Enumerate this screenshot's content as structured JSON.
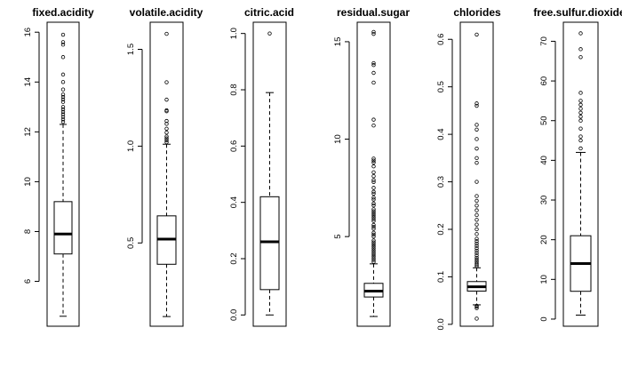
{
  "chart_data": [
    {
      "type": "boxplot",
      "title": "fixed.acidity",
      "ylim": [
        4.2,
        16.4
      ],
      "ticks": [
        6,
        8,
        10,
        12,
        14,
        16
      ],
      "tick_labels": [
        "6",
        "8",
        "10",
        "12",
        "14",
        "16"
      ],
      "box": {
        "whisker_low": 4.6,
        "q1": 7.1,
        "median": 7.9,
        "q3": 9.2,
        "whisker_high": 12.3
      },
      "outliers": [
        12.4,
        12.5,
        12.6,
        12.7,
        12.8,
        12.9,
        13.0,
        13.2,
        13.3,
        13.4,
        13.5,
        13.7,
        14.0,
        14.3,
        15.0,
        15.5,
        15.6,
        15.9
      ]
    },
    {
      "type": "boxplot",
      "title": "volatile.acidity",
      "ylim": [
        0.07,
        1.64
      ],
      "ticks": [
        0.5,
        1.0,
        1.5
      ],
      "tick_labels": [
        "0.5",
        "1.0",
        "1.5"
      ],
      "box": {
        "whisker_low": 0.12,
        "q1": 0.39,
        "median": 0.52,
        "q3": 0.64,
        "whisker_high": 1.01
      },
      "outliers": [
        1.02,
        1.03,
        1.04,
        1.05,
        1.07,
        1.09,
        1.115,
        1.13,
        1.18,
        1.185,
        1.24,
        1.33,
        1.58
      ]
    },
    {
      "type": "boxplot",
      "title": "citric.acid",
      "ylim": [
        -0.04,
        1.04
      ],
      "ticks": [
        0.0,
        0.2,
        0.4,
        0.6,
        0.8,
        1.0
      ],
      "tick_labels": [
        "0.0",
        "0.2",
        "0.4",
        "0.6",
        "0.8",
        "1.0"
      ],
      "box": {
        "whisker_low": 0.0,
        "q1": 0.09,
        "median": 0.26,
        "q3": 0.42,
        "whisker_high": 0.79
      },
      "outliers": [
        1.0
      ]
    },
    {
      "type": "boxplot",
      "title": "residual.sugar",
      "ylim": [
        0.4,
        16.0
      ],
      "ticks": [
        5,
        10,
        15
      ],
      "tick_labels": [
        "5",
        "10",
        "15"
      ],
      "box": {
        "whisker_low": 0.9,
        "q1": 1.9,
        "median": 2.2,
        "q3": 2.6,
        "whisker_high": 3.6
      },
      "outliers": [
        3.7,
        3.8,
        3.9,
        4.0,
        4.1,
        4.2,
        4.3,
        4.4,
        4.5,
        4.6,
        4.7,
        4.8,
        5.0,
        5.1,
        5.2,
        5.4,
        5.5,
        5.6,
        5.8,
        5.9,
        6.0,
        6.1,
        6.2,
        6.3,
        6.4,
        6.6,
        6.7,
        6.9,
        7.0,
        7.2,
        7.3,
        7.5,
        7.8,
        7.9,
        8.1,
        8.3,
        8.6,
        8.8,
        8.9,
        9.0,
        10.7,
        11.0,
        12.9,
        13.4,
        13.8,
        13.9,
        15.4,
        15.5
      ]
    },
    {
      "type": "boxplot",
      "title": "chlorides",
      "ylim": [
        -0.004,
        0.636
      ],
      "ticks": [
        0.0,
        0.1,
        0.2,
        0.3,
        0.4,
        0.5,
        0.6
      ],
      "tick_labels": [
        "0.0",
        "0.1",
        "0.2",
        "0.3",
        "0.4",
        "0.5",
        "0.6"
      ],
      "box": {
        "whisker_low": 0.041,
        "q1": 0.07,
        "median": 0.079,
        "q3": 0.09,
        "whisker_high": 0.119
      },
      "outliers": [
        0.012,
        0.034,
        0.037,
        0.039,
        0.122,
        0.125,
        0.128,
        0.132,
        0.136,
        0.14,
        0.145,
        0.15,
        0.155,
        0.16,
        0.165,
        0.17,
        0.175,
        0.18,
        0.19,
        0.2,
        0.21,
        0.22,
        0.23,
        0.24,
        0.25,
        0.26,
        0.27,
        0.3,
        0.34,
        0.35,
        0.37,
        0.39,
        0.41,
        0.42,
        0.46,
        0.465,
        0.61
      ]
    },
    {
      "type": "boxplot",
      "title": "free.sulfur.dioxide",
      "ylim": [
        -1.8,
        74.8
      ],
      "ticks": [
        0,
        10,
        20,
        30,
        40,
        50,
        60,
        70
      ],
      "tick_labels": [
        "0",
        "10",
        "20",
        "30",
        "40",
        "50",
        "60",
        "70"
      ],
      "box": {
        "whisker_low": 1,
        "q1": 7,
        "median": 14,
        "q3": 21,
        "whisker_high": 42
      },
      "outliers": [
        43,
        45,
        46,
        48,
        50,
        51,
        52,
        53,
        54,
        55,
        57,
        66,
        68,
        72
      ]
    }
  ]
}
